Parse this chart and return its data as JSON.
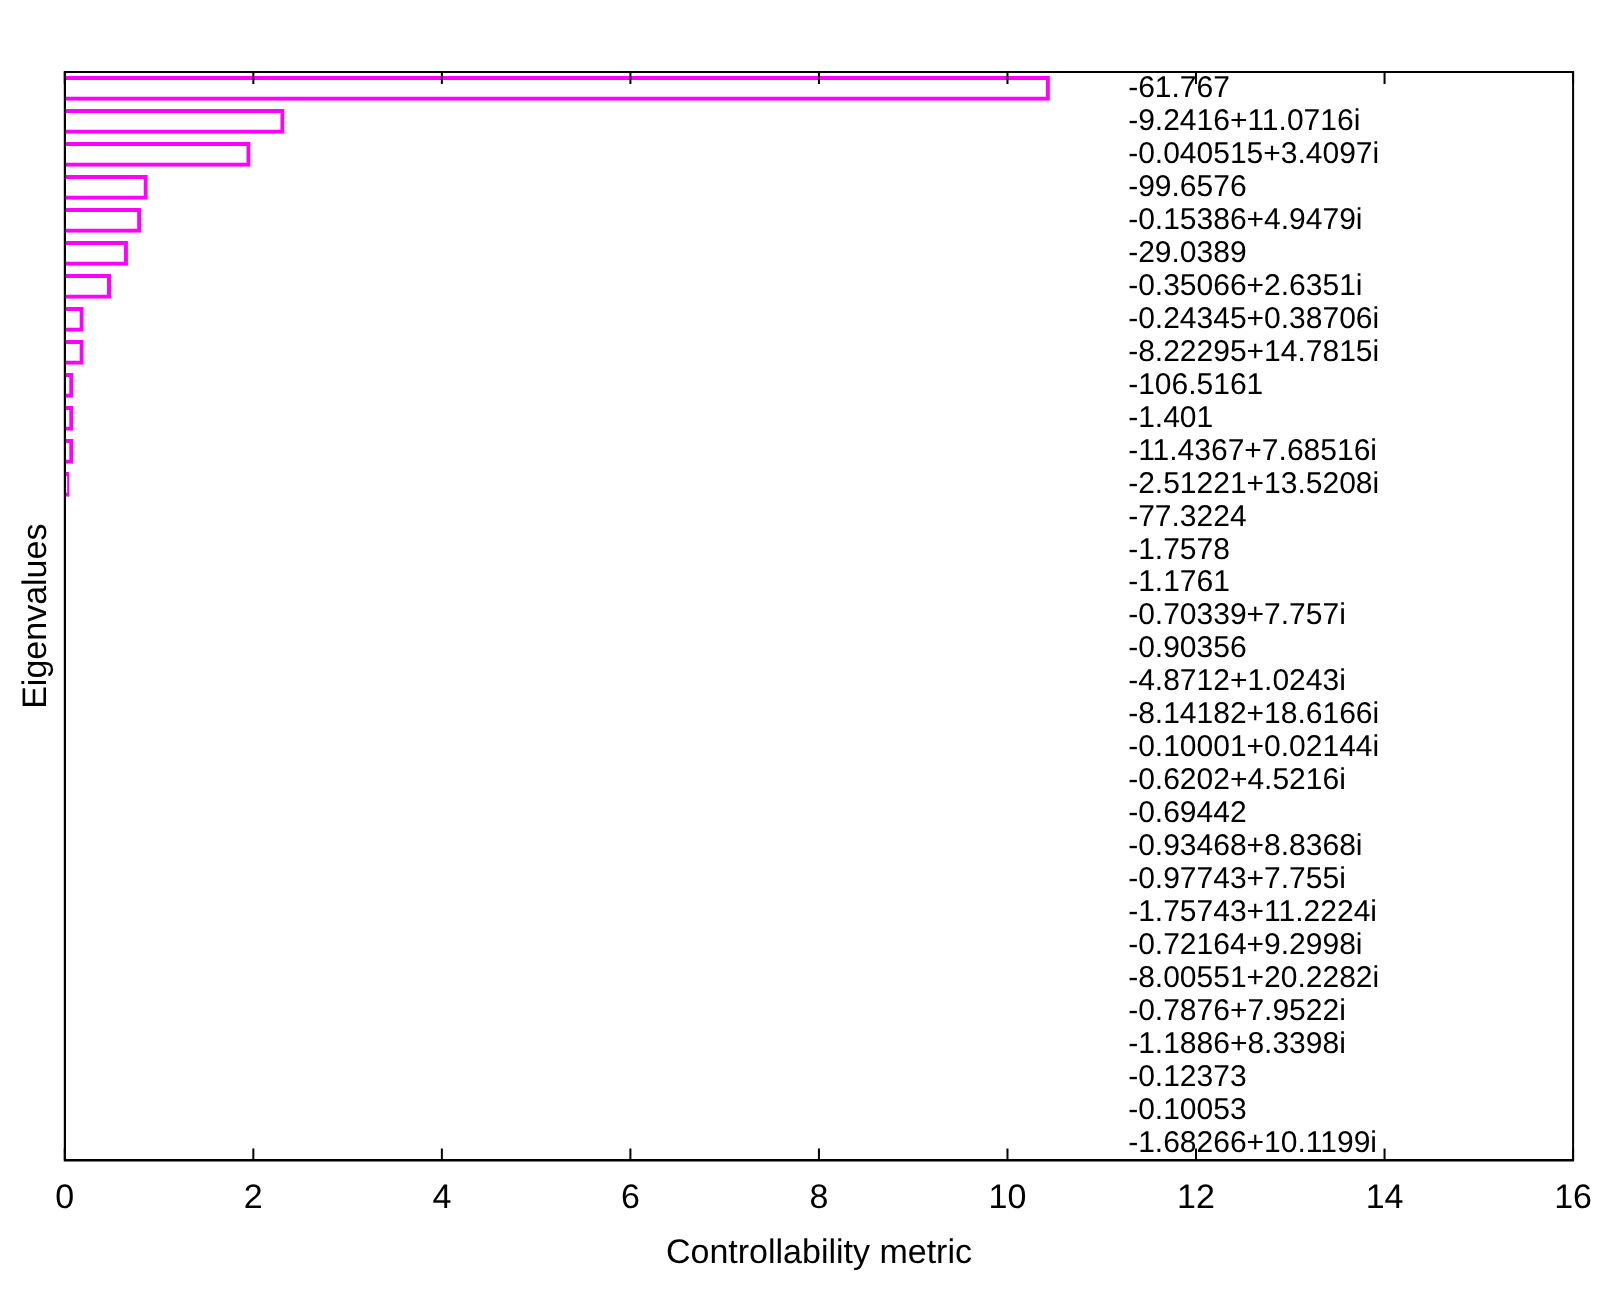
{
  "chart_data": {
    "type": "bar",
    "orientation": "horizontal",
    "xlabel": "Controllability metric",
    "ylabel": "Eigenvalues",
    "categories": [
      "-61.767",
      "-9.2416+11.0716i",
      "-0.040515+3.4097i",
      "-99.6576",
      "-0.15386+4.9479i",
      "-29.0389",
      "-0.35066+2.6351i",
      "-0.24345+0.38706i",
      "-8.22295+14.7815i",
      "-106.5161",
      "-1.401",
      "-11.4367+7.68516i",
      "-2.51221+13.5208i",
      "-77.3224",
      "-1.7578",
      "-1.1761",
      "-0.70339+7.757i",
      "-0.90356",
      "-4.8712+1.0243i",
      "-8.14182+18.6166i",
      "-0.10001+0.02144i",
      "-0.6202+4.5216i",
      "-0.69442",
      "-0.93468+8.8368i",
      "-0.97743+7.755i",
      "-1.75743+11.2224i",
      "-0.72164+9.2998i",
      "-8.00551+20.2282i",
      "-0.7876+7.9522i",
      "-1.1886+8.3398i",
      "-0.12373",
      "-0.10053",
      "-1.68266+10.1199i"
    ],
    "values": [
      10.45,
      2.33,
      1.97,
      0.88,
      0.81,
      0.67,
      0.49,
      0.2,
      0.2,
      0.09,
      0.09,
      0.09,
      0.05,
      0,
      0,
      0,
      0,
      0,
      0,
      0,
      0,
      0,
      0,
      0,
      0,
      0,
      0,
      0,
      0,
      0,
      0,
      0,
      0
    ],
    "color": "#ff00ff",
    "xlim": [
      0,
      16
    ],
    "xticks": [
      0,
      2,
      4,
      6,
      8,
      10,
      12,
      14,
      16
    ],
    "grid": false,
    "legend": false
  }
}
